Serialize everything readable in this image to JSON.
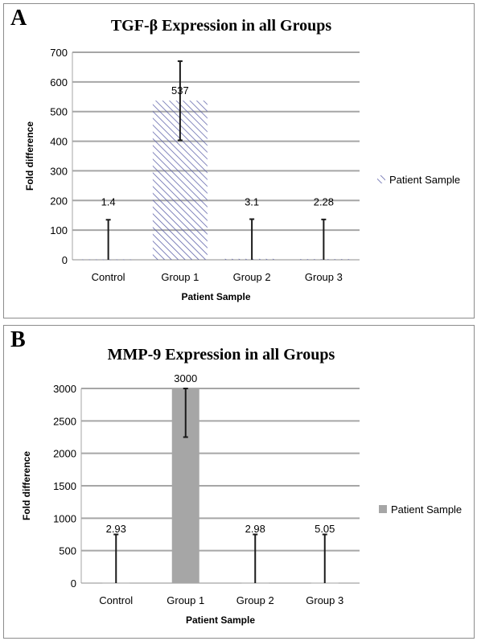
{
  "chart_data": [
    {
      "type": "bar",
      "panel_letter": "A",
      "title": "TGF-β Expression in all Groups",
      "xlabel": "Patient Sample",
      "ylabel": "Fold difference",
      "categories": [
        "Control",
        "Group 1",
        "Group 2",
        "Group 3"
      ],
      "ylim": [
        0,
        700
      ],
      "yticks": [
        0,
        100,
        200,
        300,
        400,
        500,
        600,
        700
      ],
      "grid": true,
      "legend_position": "right",
      "series": [
        {
          "name": "Patient Sample",
          "values": [
            1.4,
            537,
            3.1,
            2.28
          ],
          "data_labels": [
            "1.4",
            "537",
            "3.1",
            "2.28"
          ],
          "error_high": [
            135,
            670,
            137,
            136
          ],
          "error_low": [
            0,
            403,
            0,
            0
          ],
          "fill": "hatch",
          "color": "#5b5fa8"
        }
      ]
    },
    {
      "type": "bar",
      "panel_letter": "B",
      "title": "MMP-9 Expression in all Groups",
      "xlabel": "Patient Sample",
      "ylabel": "Fold difference",
      "categories": [
        "Control",
        "Group 1",
        "Group 2",
        "Group 3"
      ],
      "ylim": [
        0,
        3000
      ],
      "yticks": [
        0,
        500,
        1000,
        1500,
        2000,
        2500,
        3000
      ],
      "grid": true,
      "legend_position": "right",
      "series": [
        {
          "name": "Patient Sample",
          "values": [
            2.93,
            3000,
            2.98,
            5.05
          ],
          "data_labels": [
            "2.93",
            "3000",
            "2.98",
            "5.05"
          ],
          "error_high": [
            750,
            3000,
            750,
            750
          ],
          "error_low": [
            0,
            2250,
            0,
            0
          ],
          "fill": "solid",
          "color": "#a6a6a6"
        }
      ]
    }
  ]
}
